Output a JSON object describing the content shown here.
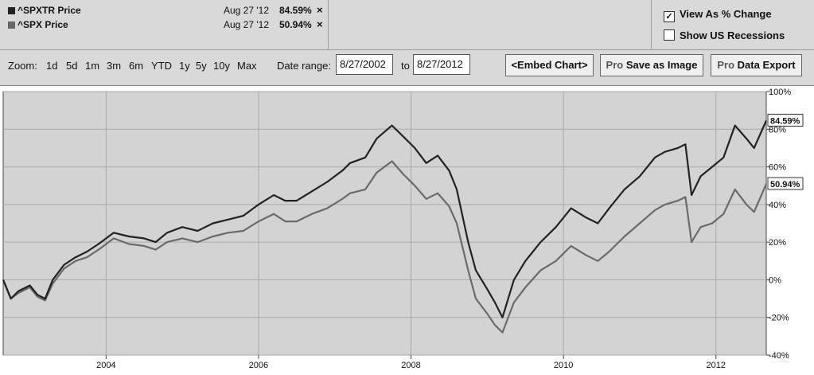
{
  "legend": {
    "series": [
      {
        "name": "^SPXTR Price",
        "date": "Aug 27 '12",
        "value": "84.59%",
        "color": "#222222"
      },
      {
        "name": "^SPX Price",
        "date": "Aug 27 '12",
        "value": "50.94%",
        "color": "#666666"
      }
    ],
    "close_glyph": "×",
    "check_glyph": "✓",
    "options": [
      {
        "label": "View As % Change",
        "checked": true
      },
      {
        "label": "Show US Recessions",
        "checked": false
      }
    ]
  },
  "toolbar": {
    "zoom_label": "Zoom:",
    "zoom_options": [
      "1d",
      "5d",
      "1m",
      "3m",
      "6m",
      "YTD",
      "1y",
      "5y",
      "10y",
      "Max"
    ],
    "date_range_label": "Date range:",
    "date_from": "8/27/2002",
    "to_label": "to",
    "date_to": "8/27/2012",
    "embed_label": "<Embed Chart>",
    "pro_label": "Pro",
    "save_label": "Save as Image",
    "export_label": "Data Export"
  },
  "chart_data": {
    "type": "line",
    "x_range": [
      2002.65,
      2012.66
    ],
    "ylim": [
      -40,
      100
    ],
    "x_ticks": [
      {
        "x": 2004,
        "label": "2004"
      },
      {
        "x": 2006,
        "label": "2006"
      },
      {
        "x": 2008,
        "label": "2008"
      },
      {
        "x": 2010,
        "label": "2010"
      },
      {
        "x": 2012,
        "label": "2012"
      }
    ],
    "y_ticks": [
      {
        "y": 100,
        "label": "100%"
      },
      {
        "y": 80,
        "label": "80%"
      },
      {
        "y": 60,
        "label": "60%"
      },
      {
        "y": 40,
        "label": "40%"
      },
      {
        "y": 20,
        "label": "20%"
      },
      {
        "y": 0,
        "label": "0%"
      },
      {
        "y": -20,
        "label": "-20%"
      },
      {
        "y": -40,
        "label": "-40%"
      }
    ],
    "grid": true,
    "series": [
      {
        "name": "^SPXTR Price",
        "color": "#222222",
        "end_label": "84.59%",
        "x": [
          2002.65,
          2002.75,
          2002.85,
          2003.0,
          2003.1,
          2003.2,
          2003.3,
          2003.45,
          2003.6,
          2003.75,
          2003.9,
          2004.1,
          2004.3,
          2004.5,
          2004.65,
          2004.8,
          2005.0,
          2005.2,
          2005.4,
          2005.6,
          2005.8,
          2006.0,
          2006.2,
          2006.35,
          2006.5,
          2006.7,
          2006.9,
          2007.1,
          2007.2,
          2007.4,
          2007.55,
          2007.75,
          2007.9,
          2008.05,
          2008.2,
          2008.35,
          2008.5,
          2008.6,
          2008.75,
          2008.85,
          2009.0,
          2009.1,
          2009.2,
          2009.35,
          2009.5,
          2009.7,
          2009.9,
          2010.1,
          2010.3,
          2010.45,
          2010.6,
          2010.8,
          2011.0,
          2011.2,
          2011.33,
          2011.5,
          2011.6,
          2011.68,
          2011.8,
          2011.95,
          2012.1,
          2012.25,
          2012.4,
          2012.5,
          2012.66
        ],
        "y": [
          0,
          -10,
          -6,
          -3,
          -8,
          -10,
          0,
          8,
          12,
          15,
          19,
          25,
          23,
          22,
          20,
          25,
          28,
          26,
          30,
          32,
          34,
          40,
          45,
          42,
          42,
          47,
          52,
          58,
          62,
          65,
          75,
          82,
          76,
          70,
          62,
          66,
          58,
          48,
          20,
          5,
          -5,
          -12,
          -20,
          0,
          10,
          20,
          28,
          38,
          33,
          30,
          38,
          48,
          55,
          65,
          68,
          70,
          72,
          45,
          55,
          60,
          65,
          82,
          75,
          70,
          84.59
        ]
      },
      {
        "name": "^SPX Price",
        "color": "#6a6a6a",
        "end_label": "50.94%",
        "x": [
          2002.65,
          2002.75,
          2002.85,
          2003.0,
          2003.1,
          2003.2,
          2003.3,
          2003.45,
          2003.6,
          2003.75,
          2003.9,
          2004.1,
          2004.3,
          2004.5,
          2004.65,
          2004.8,
          2005.0,
          2005.2,
          2005.4,
          2005.6,
          2005.8,
          2006.0,
          2006.2,
          2006.35,
          2006.5,
          2006.7,
          2006.9,
          2007.1,
          2007.2,
          2007.4,
          2007.55,
          2007.75,
          2007.9,
          2008.05,
          2008.2,
          2008.35,
          2008.5,
          2008.6,
          2008.75,
          2008.85,
          2009.0,
          2009.1,
          2009.2,
          2009.35,
          2009.5,
          2009.7,
          2009.9,
          2010.1,
          2010.3,
          2010.45,
          2010.6,
          2010.8,
          2011.0,
          2011.2,
          2011.33,
          2011.5,
          2011.6,
          2011.68,
          2011.8,
          2011.95,
          2012.1,
          2012.25,
          2012.4,
          2012.5,
          2012.66
        ],
        "y": [
          0,
          -10,
          -7,
          -4,
          -9,
          -11,
          -2,
          6,
          10,
          12,
          16,
          22,
          19,
          18,
          16,
          20,
          22,
          20,
          23,
          25,
          26,
          31,
          35,
          31,
          31,
          35,
          38,
          43,
          46,
          48,
          57,
          63,
          56,
          50,
          43,
          46,
          39,
          30,
          5,
          -10,
          -18,
          -24,
          -28,
          -12,
          -4,
          5,
          10,
          18,
          13,
          10,
          15,
          23,
          30,
          37,
          40,
          42,
          44,
          20,
          28,
          30,
          35,
          48,
          40,
          36,
          50.94
        ]
      }
    ]
  }
}
